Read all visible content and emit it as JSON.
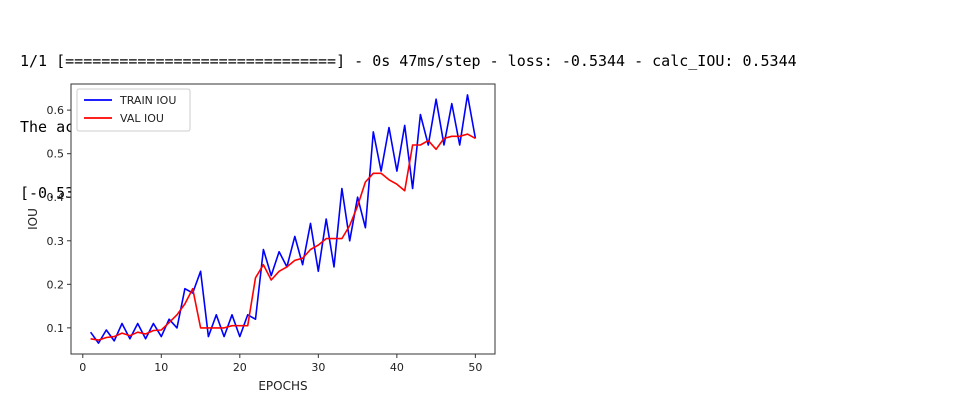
{
  "console": {
    "line1": "1/1 [==============================] - 0s 47ms/step - loss: -0.5344 - calc_IOU: 0.5344",
    "line2": "The accuracy is",
    "line3": "[-0.5343658924102783, 0.5343658924102783]"
  },
  "chart_data": {
    "type": "line",
    "title": "",
    "xlabel": "EPOCHS",
    "ylabel": "IOU",
    "xlim": [
      -1.5,
      52.5
    ],
    "ylim": [
      0.04,
      0.66
    ],
    "xticks": [
      0,
      10,
      20,
      30,
      40,
      50
    ],
    "yticks": [
      0.1,
      0.2,
      0.3,
      0.4,
      0.5,
      0.6
    ],
    "grid": false,
    "legend": "upper-left",
    "x": [
      1,
      2,
      3,
      4,
      5,
      6,
      7,
      8,
      9,
      10,
      11,
      12,
      13,
      14,
      15,
      16,
      17,
      18,
      19,
      20,
      21,
      22,
      23,
      24,
      25,
      26,
      27,
      28,
      29,
      30,
      31,
      32,
      33,
      34,
      35,
      36,
      37,
      38,
      39,
      40,
      41,
      42,
      43,
      44,
      45,
      46,
      47,
      48,
      49,
      50
    ],
    "series": [
      {
        "name": "TRAIN IOU",
        "color": "#0000ff",
        "values": [
          0.09,
          0.065,
          0.095,
          0.07,
          0.11,
          0.075,
          0.11,
          0.075,
          0.11,
          0.08,
          0.12,
          0.1,
          0.19,
          0.18,
          0.23,
          0.08,
          0.13,
          0.08,
          0.13,
          0.08,
          0.13,
          0.12,
          0.28,
          0.22,
          0.275,
          0.24,
          0.31,
          0.245,
          0.34,
          0.23,
          0.35,
          0.24,
          0.42,
          0.3,
          0.4,
          0.33,
          0.55,
          0.46,
          0.56,
          0.46,
          0.565,
          0.42,
          0.59,
          0.52,
          0.625,
          0.52,
          0.615,
          0.52,
          0.635,
          0.535
        ]
      },
      {
        "name": "VAL IOU",
        "color": "#ff0000",
        "values": [
          0.075,
          0.072,
          0.078,
          0.08,
          0.088,
          0.082,
          0.09,
          0.086,
          0.094,
          0.095,
          0.112,
          0.13,
          0.155,
          0.19,
          0.1,
          0.1,
          0.1,
          0.1,
          0.105,
          0.105,
          0.105,
          0.215,
          0.245,
          0.21,
          0.23,
          0.24,
          0.255,
          0.26,
          0.28,
          0.29,
          0.305,
          0.305,
          0.305,
          0.335,
          0.38,
          0.435,
          0.455,
          0.455,
          0.44,
          0.43,
          0.415,
          0.52,
          0.52,
          0.53,
          0.51,
          0.535,
          0.54,
          0.54,
          0.545,
          0.535
        ]
      }
    ]
  }
}
